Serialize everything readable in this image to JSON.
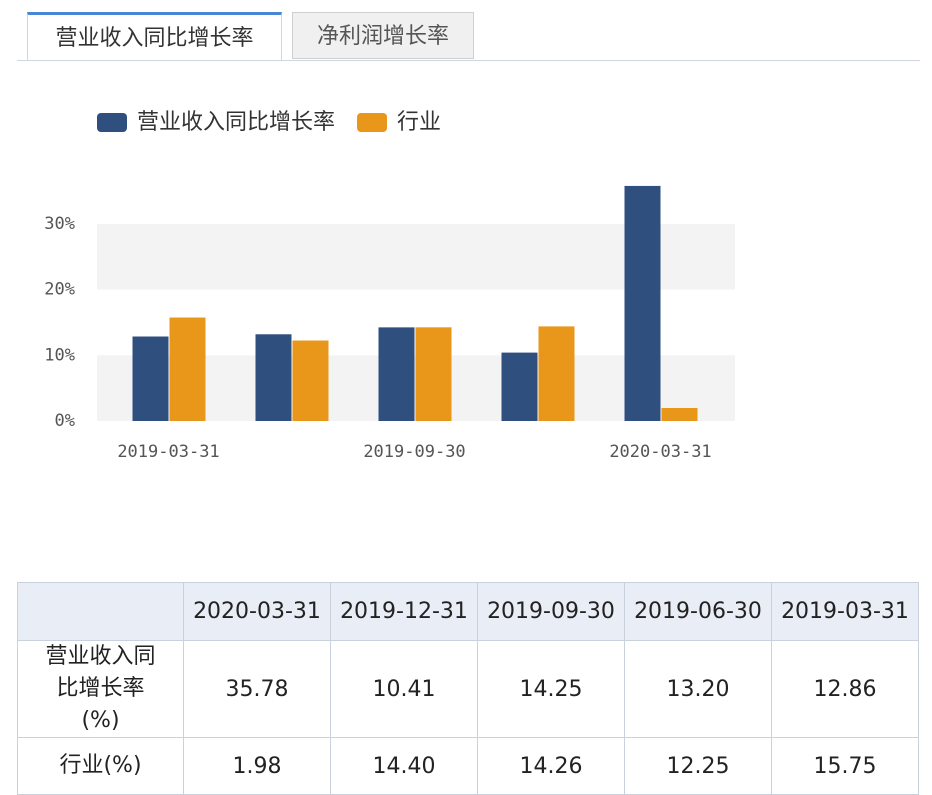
{
  "tabs": [
    "营业收入同比增长率",
    "净利润增长率"
  ],
  "chart_data": {
    "type": "bar",
    "categories": [
      "2019-03-31",
      null,
      "2019-09-30",
      null,
      "2020-03-31"
    ],
    "series": [
      {
        "name": "营业收入同比增长率",
        "color": "#2f4f7f",
        "values": [
          12.86,
          13.2,
          14.25,
          10.41,
          35.78
        ]
      },
      {
        "name": "行业",
        "color": "#e8971b",
        "values": [
          15.75,
          12.25,
          14.26,
          14.4,
          1.98
        ]
      }
    ],
    "ylim": [
      0,
      36
    ],
    "yticks": [
      {
        "value": 0,
        "label": "0%"
      },
      {
        "value": 10,
        "label": "10%"
      },
      {
        "value": 20,
        "label": "20%"
      },
      {
        "value": 30,
        "label": "30%"
      }
    ],
    "grid": "bands",
    "legend": "top-left"
  },
  "table": {
    "columns": [
      "2020-03-31",
      "2019-12-31",
      "2019-09-30",
      "2019-06-30",
      "2019-03-31"
    ],
    "rows": [
      {
        "label": "营业收入同比增长率(%)",
        "cells": [
          "35.78",
          "10.41",
          "14.25",
          "13.20",
          "12.86"
        ]
      },
      {
        "label": "行业(%)",
        "cells": [
          "1.98",
          "14.40",
          "14.26",
          "12.25",
          "15.75"
        ]
      }
    ]
  }
}
